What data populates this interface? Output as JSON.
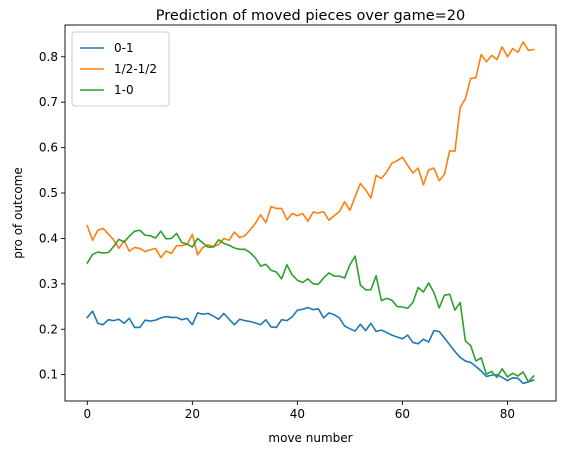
{
  "chart_data": {
    "type": "line",
    "title": "Prediction of moved pieces over game=20",
    "xlabel": "move number",
    "ylabel": "pro of outcome",
    "xlim": [
      -4.25,
      89.25
    ],
    "ylim": [
      0.042,
      0.87
    ],
    "x_ticks": [
      0,
      20,
      40,
      60,
      80
    ],
    "y_ticks": [
      0.1,
      0.2,
      0.3,
      0.4,
      0.5,
      0.6,
      0.7,
      0.8
    ],
    "x_tick_labels": [
      "0",
      "20",
      "40",
      "60",
      "80"
    ],
    "y_tick_labels": [
      "0.1",
      "0.2",
      "0.3",
      "0.4",
      "0.5",
      "0.6",
      "0.7",
      "0.8"
    ],
    "grid": false,
    "legend_position": "top-left",
    "series": [
      {
        "name": "0-1",
        "color": "#1f77b4",
        "values": [
          0.226,
          0.24,
          0.213,
          0.21,
          0.221,
          0.219,
          0.222,
          0.213,
          0.224,
          0.204,
          0.204,
          0.22,
          0.218,
          0.22,
          0.225,
          0.228,
          0.226,
          0.226,
          0.221,
          0.224,
          0.21,
          0.236,
          0.233,
          0.235,
          0.229,
          0.222,
          0.235,
          0.222,
          0.21,
          0.222,
          0.219,
          0.217,
          0.214,
          0.21,
          0.221,
          0.205,
          0.204,
          0.221,
          0.219,
          0.227,
          0.242,
          0.244,
          0.248,
          0.243,
          0.245,
          0.225,
          0.236,
          0.232,
          0.225,
          0.207,
          0.201,
          0.196,
          0.211,
          0.197,
          0.213,
          0.195,
          0.198,
          0.193,
          0.187,
          0.183,
          0.179,
          0.187,
          0.171,
          0.168,
          0.178,
          0.172,
          0.197,
          0.195,
          0.181,
          0.166,
          0.151,
          0.138,
          0.13,
          0.127,
          0.118,
          0.108,
          0.096,
          0.099,
          0.1,
          0.094,
          0.087,
          0.093,
          0.092,
          0.081,
          0.084,
          0.088
        ]
      },
      {
        "name": "1/2-1/2",
        "color": "#ff7f0e",
        "values": [
          0.428,
          0.396,
          0.418,
          0.422,
          0.41,
          0.397,
          0.378,
          0.395,
          0.372,
          0.38,
          0.378,
          0.371,
          0.375,
          0.378,
          0.358,
          0.372,
          0.367,
          0.384,
          0.384,
          0.387,
          0.409,
          0.364,
          0.38,
          0.386,
          0.382,
          0.386,
          0.4,
          0.396,
          0.414,
          0.402,
          0.406,
          0.419,
          0.433,
          0.452,
          0.435,
          0.47,
          0.466,
          0.466,
          0.441,
          0.455,
          0.45,
          0.455,
          0.438,
          0.458,
          0.456,
          0.459,
          0.44,
          0.45,
          0.459,
          0.481,
          0.462,
          0.492,
          0.521,
          0.507,
          0.489,
          0.539,
          0.532,
          0.546,
          0.566,
          0.571,
          0.579,
          0.561,
          0.544,
          0.555,
          0.518,
          0.551,
          0.555,
          0.527,
          0.541,
          0.593,
          0.592,
          0.688,
          0.708,
          0.752,
          0.754,
          0.805,
          0.789,
          0.803,
          0.794,
          0.822,
          0.8,
          0.818,
          0.81,
          0.833,
          0.814,
          0.816
        ]
      },
      {
        "name": "1-0",
        "color": "#2ca02c",
        "values": [
          0.346,
          0.365,
          0.37,
          0.368,
          0.369,
          0.382,
          0.398,
          0.392,
          0.405,
          0.416,
          0.418,
          0.407,
          0.406,
          0.401,
          0.416,
          0.399,
          0.4,
          0.411,
          0.391,
          0.388,
          0.381,
          0.4,
          0.39,
          0.381,
          0.381,
          0.397,
          0.389,
          0.385,
          0.379,
          0.376,
          0.376,
          0.369,
          0.357,
          0.339,
          0.343,
          0.33,
          0.326,
          0.311,
          0.342,
          0.32,
          0.308,
          0.303,
          0.311,
          0.3,
          0.299,
          0.313,
          0.324,
          0.317,
          0.317,
          0.313,
          0.342,
          0.361,
          0.297,
          0.287,
          0.287,
          0.318,
          0.263,
          0.268,
          0.264,
          0.25,
          0.249,
          0.246,
          0.259,
          0.292,
          0.282,
          0.302,
          0.281,
          0.247,
          0.275,
          0.277,
          0.242,
          0.259,
          0.174,
          0.164,
          0.13,
          0.137,
          0.101,
          0.107,
          0.094,
          0.113,
          0.095,
          0.103,
          0.097,
          0.106,
          0.084,
          0.097
        ]
      }
    ]
  }
}
